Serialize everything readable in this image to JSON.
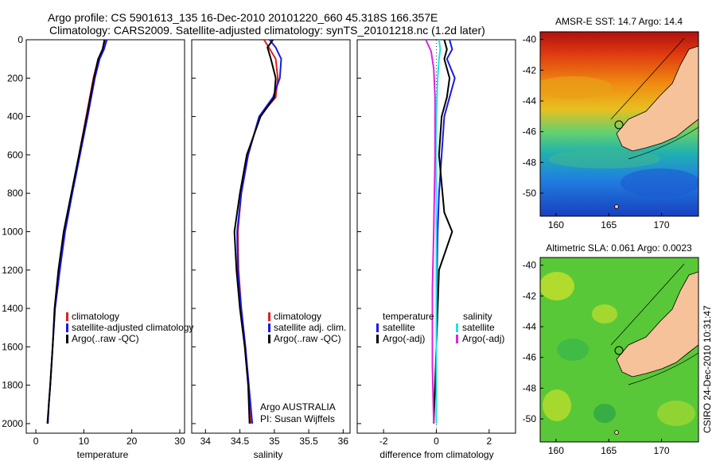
{
  "header": {
    "line1": "Argo profile: CS 5901613_135 16-Dec-2010 20101220_660 45.318S 166.357E",
    "line2": "Climatology: CARS2009. Satellite-adjusted climatology: synTS_20101218.nc (1.2d later)"
  },
  "side_label": "CSIRO 24-Dec-2010 10:31:47",
  "colors": {
    "climatology": "#e02020",
    "satellite": "#1a1ae6",
    "argo": "#000000",
    "satellite_salinity": "#20e0e8",
    "argo_salinity": "#e020e0",
    "land": "#f5c29a"
  },
  "chart_data": [
    {
      "type": "line",
      "xlabel": "temperature",
      "ylabel": "",
      "xlim": [
        -2,
        31
      ],
      "ylim": [
        2050,
        0
      ],
      "xticks": [
        "0",
        "10",
        "20",
        "30"
      ],
      "yticks": [
        "0",
        "200",
        "400",
        "600",
        "800",
        "1000",
        "1200",
        "1400",
        "1600",
        "1800",
        "2000"
      ],
      "legend": {
        "position": "lower-center",
        "entries": [
          "climatology",
          "satellite-adjusted climatology",
          "Argo(..raw -QC)"
        ]
      },
      "series": [
        {
          "name": "climatology",
          "color": "#e02020",
          "x": [
            14.5,
            14.0,
            13.0,
            12.0,
            10.5,
            9.0,
            7.5,
            6.0,
            5.0,
            4.0,
            3.5,
            3.0,
            2.7,
            2.5
          ],
          "y": [
            0,
            50,
            100,
            200,
            400,
            600,
            800,
            1000,
            1200,
            1400,
            1600,
            1800,
            1900,
            2000
          ]
        },
        {
          "name": "satellite-adjusted climatology",
          "color": "#1a1ae6",
          "x": [
            14.8,
            14.2,
            13.3,
            12.3,
            10.8,
            9.2,
            7.6,
            6.1,
            5.0,
            4.0,
            3.5,
            3.0,
            2.7,
            2.5
          ],
          "y": [
            0,
            50,
            100,
            200,
            400,
            600,
            800,
            1000,
            1200,
            1400,
            1600,
            1800,
            1900,
            2000
          ]
        },
        {
          "name": "Argo(..raw -QC)",
          "color": "#000000",
          "x": [
            14.3,
            13.9,
            13.0,
            12.1,
            10.6,
            9.0,
            7.4,
            5.8,
            4.7,
            3.9,
            3.5,
            3.0,
            2.7,
            2.4
          ],
          "y": [
            0,
            50,
            100,
            200,
            400,
            600,
            800,
            1000,
            1200,
            1400,
            1600,
            1800,
            1900,
            2000
          ]
        }
      ]
    },
    {
      "type": "line",
      "xlabel": "salinity",
      "ylabel": "",
      "xlim": [
        33.8,
        36.1
      ],
      "ylim": [
        2050,
        0
      ],
      "xticks": [
        "34",
        "34.5",
        "35",
        "35.5",
        "36"
      ],
      "legend": {
        "position": "lower-center",
        "entries": [
          "climatology",
          "satellite adj. clim.",
          "Argo(..raw -QC)"
        ]
      },
      "annotation": [
        "Argo AUSTRALIA",
        "PI: Susan Wijffels"
      ],
      "series": [
        {
          "name": "climatology",
          "color": "#e02020",
          "x": [
            34.85,
            34.92,
            35.02,
            35.05,
            35.02,
            34.78,
            34.62,
            34.52,
            34.47,
            34.48,
            34.52,
            34.58,
            34.62,
            34.66
          ],
          "y": [
            0,
            40,
            100,
            200,
            300,
            400,
            600,
            800,
            1000,
            1200,
            1400,
            1600,
            1800,
            2000
          ]
        },
        {
          "name": "satellite adj. clim.",
          "color": "#1a1ae6",
          "x": [
            34.93,
            35.02,
            35.1,
            35.08,
            34.98,
            34.78,
            34.62,
            34.52,
            34.46,
            34.47,
            34.52,
            34.58,
            34.63,
            34.68
          ],
          "y": [
            0,
            40,
            100,
            200,
            300,
            400,
            600,
            800,
            1000,
            1200,
            1400,
            1600,
            1800,
            2000
          ]
        },
        {
          "name": "Argo(..raw -QC)",
          "color": "#000000",
          "x": [
            34.98,
            34.9,
            34.95,
            35.02,
            35.0,
            34.8,
            34.6,
            34.5,
            34.42,
            34.45,
            34.5,
            34.57,
            34.62,
            34.64
          ],
          "y": [
            0,
            40,
            100,
            200,
            300,
            400,
            600,
            800,
            1000,
            1200,
            1400,
            1600,
            1800,
            2000
          ]
        }
      ]
    },
    {
      "type": "line",
      "xlabel": "difference from climatology",
      "ylabel": "",
      "xlim": [
        -3,
        3
      ],
      "ylim": [
        2050,
        0
      ],
      "xticks": [
        "-2",
        "0",
        "2"
      ],
      "legend": {
        "position": "lower-center",
        "entries": [
          "temperature",
          "satellite",
          "Argo(-adj)",
          "salinity",
          "satellite",
          "Argo(-adj)"
        ]
      },
      "series": [
        {
          "name": "temperature satellite",
          "color": "#1a1ae6",
          "x": [
            0.5,
            0.6,
            0.4,
            0.7,
            0.5,
            0.3,
            0.2,
            0.1,
            0.05,
            0.0,
            0.0,
            0.0
          ],
          "y": [
            0,
            50,
            100,
            200,
            300,
            400,
            600,
            800,
            1000,
            1400,
            1700,
            2000
          ]
        },
        {
          "name": "temperature Argo(-adj)",
          "color": "#000000",
          "x": [
            0.3,
            0.4,
            0.3,
            0.5,
            0.4,
            0.2,
            0.1,
            0.3,
            0.6,
            0.1,
            0.0,
            -0.1
          ],
          "y": [
            0,
            50,
            100,
            200,
            300,
            400,
            600,
            900,
            1000,
            1200,
            1600,
            2000
          ]
        },
        {
          "name": "salinity satellite",
          "color": "#20e0e8",
          "x": [
            0.1,
            0.15,
            0.1,
            0.05,
            0.0,
            -0.02,
            0.0,
            0.0,
            0.0,
            0.0
          ],
          "y": [
            0,
            50,
            100,
            200,
            400,
            600,
            800,
            1200,
            1600,
            2000
          ]
        },
        {
          "name": "salinity Argo(-adj)",
          "color": "#e020e0",
          "x": [
            -0.4,
            -0.2,
            -0.1,
            -0.05,
            -0.05,
            -0.1,
            -0.15,
            -0.15,
            -0.1
          ],
          "y": [
            0,
            60,
            150,
            300,
            600,
            1000,
            1300,
            1700,
            2000
          ]
        }
      ]
    },
    {
      "type": "heatmap",
      "title": "AMSR-E SST: 14.7 Argo: 14.4",
      "xlim": [
        158.5,
        173.5
      ],
      "ylim": [
        -51.5,
        -39.5
      ],
      "xticks": [
        "160",
        "165",
        "170"
      ],
      "yticks": [
        "-40",
        "-42",
        "-44",
        "-46",
        "-48",
        "-50"
      ],
      "argo_position": {
        "lon": 166.357,
        "lat": -45.318
      }
    },
    {
      "type": "heatmap",
      "title": "Altimetric SLA: 0.061 Argo: 0.0023",
      "xlim": [
        158.5,
        173.5
      ],
      "ylim": [
        -51.5,
        -39.5
      ],
      "xticks": [
        "160",
        "165",
        "170"
      ],
      "yticks": [
        "-40",
        "-42",
        "-44",
        "-46",
        "-48",
        "-50"
      ],
      "argo_position": {
        "lon": 166.357,
        "lat": -45.318
      }
    }
  ]
}
